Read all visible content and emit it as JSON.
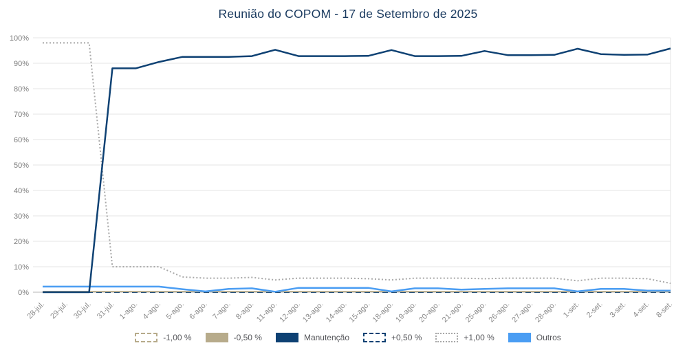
{
  "chart_data": {
    "type": "line",
    "title": "Reunião do COPOM - 17 de Setembro de 2025",
    "xlabel": "",
    "ylabel": "",
    "ylim": [
      0,
      100
    ],
    "ytick_step": 10,
    "ytick_suffix": "%",
    "grid": "horizontal",
    "legend_position": "bottom",
    "categories": [
      "28-jul.",
      "29-jul.",
      "30-jul.",
      "31-jul.",
      "1-ago.",
      "4-ago.",
      "5-ago.",
      "6-ago.",
      "7-ago.",
      "8-ago.",
      "11-ago.",
      "12-ago.",
      "13-ago.",
      "14-ago.",
      "15-ago.",
      "18-ago.",
      "19-ago.",
      "20-ago.",
      "21-ago.",
      "25-ago.",
      "26-ago.",
      "27-ago.",
      "28-ago.",
      "1-set.",
      "2-set.",
      "3-set.",
      "4-set.",
      "8-set."
    ],
    "series": [
      {
        "name": "-1,00 %",
        "color": "#b7ab8b",
        "style": "dashed",
        "width": 2,
        "values": [
          0,
          0,
          0,
          0,
          0,
          0,
          0,
          0,
          0,
          0,
          0,
          0,
          0,
          0,
          0,
          0,
          0,
          0,
          0,
          0,
          0,
          0,
          0,
          0,
          0,
          0,
          0,
          0
        ]
      },
      {
        "name": "-0,50 %",
        "color": "#b7ab8b",
        "style": "solid",
        "width": 2,
        "values": [
          0.25,
          0.25,
          0.25,
          0.25,
          0.25,
          0.25,
          0.25,
          0.25,
          0.25,
          0.25,
          0.25,
          0.25,
          0.25,
          0.25,
          0.25,
          0.25,
          0.25,
          0.25,
          0.25,
          0.25,
          0.25,
          0.25,
          0.25,
          0.25,
          0.25,
          0.25,
          0.25,
          0.25
        ]
      },
      {
        "name": "Manutenção",
        "color": "#0e4173",
        "style": "solid",
        "width": 2.5,
        "values": [
          0,
          0,
          0,
          88,
          88,
          90.5,
          92.5,
          92.5,
          92.5,
          92.8,
          95.3,
          92.8,
          92.8,
          92.8,
          92.9,
          95.2,
          92.8,
          92.8,
          92.9,
          94.8,
          93.2,
          93.2,
          93.3,
          95.7,
          93.6,
          93.3,
          93.4,
          95.8
        ]
      },
      {
        "name": "+0,50 %",
        "color": "#0e4173",
        "style": "dashed",
        "width": 2,
        "values": [
          0,
          0,
          0,
          0,
          0,
          0,
          0,
          0,
          0,
          0,
          0,
          0,
          0,
          0,
          0,
          0,
          0,
          0,
          0,
          0,
          0,
          0,
          0,
          0,
          0,
          0,
          0,
          0
        ]
      },
      {
        "name": "+1,00 %",
        "color": "#a8a8a8",
        "style": "dotted",
        "width": 2,
        "values": [
          98,
          98,
          98,
          10,
          10,
          10,
          6,
          5.5,
          5.5,
          5.8,
          4.8,
          5.5,
          5.5,
          5.5,
          5.3,
          4.8,
          5.5,
          5.5,
          5.5,
          5.3,
          5.5,
          5.5,
          5.5,
          4.5,
          5.5,
          5.5,
          5.3,
          3.5
        ]
      },
      {
        "name": "Outros",
        "color": "#4a9df3",
        "style": "solid",
        "width": 2.5,
        "values": [
          2.2,
          2.2,
          2.2,
          2.2,
          2.2,
          2.2,
          1.2,
          0.3,
          1.3,
          1.5,
          0.2,
          1.7,
          1.7,
          1.7,
          1.7,
          0.3,
          1.5,
          1.5,
          1.0,
          1.3,
          1.5,
          1.5,
          1.5,
          0.3,
          1.3,
          1.3,
          0.6,
          0.6
        ]
      }
    ],
    "z_order": [
      "-1,00 %",
      "+0,50 %",
      "-0,50 %",
      "+1,00 %",
      "Outros",
      "Manutenção"
    ]
  }
}
